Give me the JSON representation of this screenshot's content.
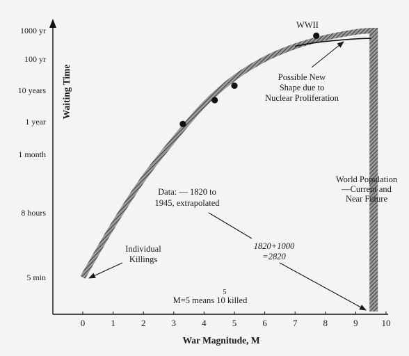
{
  "chart_data": {
    "type": "line",
    "xlabel": "War Magnitude, M",
    "ylabel": "Waiting Time",
    "xlim": [
      -1,
      10
    ],
    "x_ticks": [
      "0",
      "1",
      "2",
      "3",
      "4",
      "5",
      "6",
      "7",
      "8",
      "9",
      "10"
    ],
    "y_ticks": [
      "5 min",
      "8 hours",
      "1 month",
      "1 year",
      "10 years",
      "100 yr",
      "1000 yr"
    ],
    "y_tick_levels": [
      0,
      2,
      4,
      5,
      6,
      7,
      8
    ],
    "series": [
      {
        "style": "hatched-band",
        "x": [
          0,
          1,
          2,
          3,
          4,
          5,
          6,
          7,
          8,
          9,
          9.5
        ],
        "y_level": [
          0.0,
          1.6,
          3.15,
          4.45,
          5.55,
          6.4,
          7.0,
          7.45,
          7.75,
          7.95,
          8.0
        ]
      },
      {
        "style": "solid-line",
        "x": [
          7.0,
          7.5,
          8.0,
          8.5,
          9.0,
          9.5
        ],
        "y_level": [
          7.45,
          7.55,
          7.62,
          7.67,
          7.71,
          7.73
        ]
      }
    ],
    "points": [
      {
        "x": 3.3,
        "y_level": 4.93
      },
      {
        "x": 4.35,
        "y_level": 5.69
      },
      {
        "x": 5.0,
        "y_level": 6.15
      },
      {
        "x": 7.7,
        "y_level": 7.82
      }
    ],
    "vertical_band_x": 9.5,
    "annotations": {
      "wwii": "WWII",
      "shape_1": "Possible New",
      "shape_2": "Shape due to",
      "shape_3": "Nuclear Proliferation",
      "pop_1": "World Population",
      "pop_2": "—Current and",
      "pop_3": "Near Future",
      "data_1": "Data: — 1820 to",
      "data_2": "1945, extrapolated",
      "ind_1": "Individual",
      "ind_2": "Killings",
      "year_1": "1820+1000",
      "year_2": "=2820",
      "mag_text": "M=5 means 10  killed",
      "mag_exp": "5"
    }
  }
}
